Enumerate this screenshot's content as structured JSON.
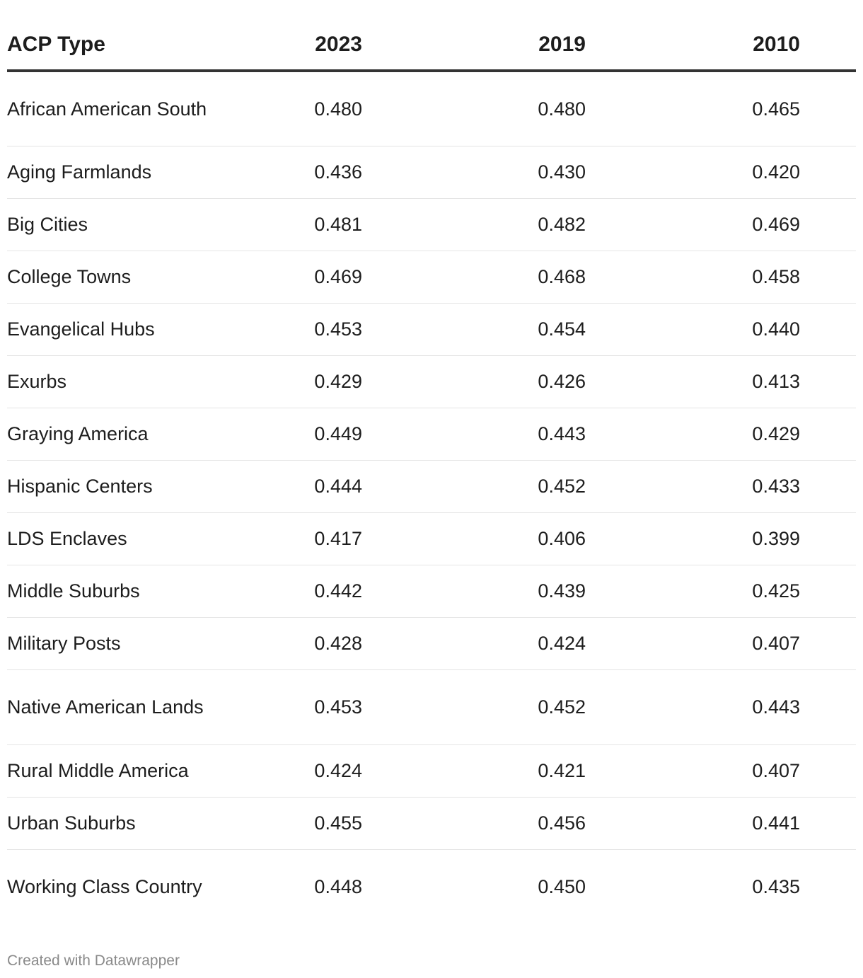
{
  "chart_data": {
    "type": "table",
    "columns": [
      "ACP Type",
      "2023",
      "2019",
      "2010"
    ],
    "rows": [
      {
        "name": "African American South",
        "values": [
          "0.480",
          "0.480",
          "0.465"
        ]
      },
      {
        "name": "Aging Farmlands",
        "values": [
          "0.436",
          "0.430",
          "0.420"
        ]
      },
      {
        "name": "Big Cities",
        "values": [
          "0.481",
          "0.482",
          "0.469"
        ]
      },
      {
        "name": "College Towns",
        "values": [
          "0.469",
          "0.468",
          "0.458"
        ]
      },
      {
        "name": "Evangelical Hubs",
        "values": [
          "0.453",
          "0.454",
          "0.440"
        ]
      },
      {
        "name": "Exurbs",
        "values": [
          "0.429",
          "0.426",
          "0.413"
        ]
      },
      {
        "name": "Graying America",
        "values": [
          "0.449",
          "0.443",
          "0.429"
        ]
      },
      {
        "name": "Hispanic Centers",
        "values": [
          "0.444",
          "0.452",
          "0.433"
        ]
      },
      {
        "name": "LDS Enclaves",
        "values": [
          "0.417",
          "0.406",
          "0.399"
        ]
      },
      {
        "name": "Middle Suburbs",
        "values": [
          "0.442",
          "0.439",
          "0.425"
        ]
      },
      {
        "name": "Military Posts",
        "values": [
          "0.428",
          "0.424",
          "0.407"
        ]
      },
      {
        "name": "Native American Lands",
        "values": [
          "0.453",
          "0.452",
          "0.443"
        ]
      },
      {
        "name": "Rural Middle America",
        "values": [
          "0.424",
          "0.421",
          "0.407"
        ]
      },
      {
        "name": "Urban Suburbs",
        "values": [
          "0.455",
          "0.456",
          "0.441"
        ]
      },
      {
        "name": "Working Class Country",
        "values": [
          "0.448",
          "0.450",
          "0.435"
        ]
      }
    ],
    "footer": "Created with Datawrapper"
  }
}
